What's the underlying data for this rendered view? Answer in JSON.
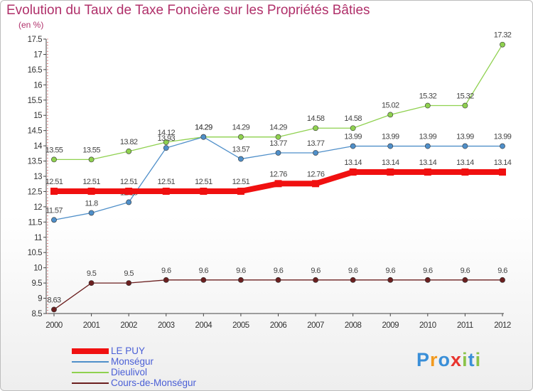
{
  "title": "Evolution du Taux de Taxe Foncière sur les Propriétés Bâties",
  "subtitle": "(en %)",
  "logo": {
    "text": [
      "P",
      "r",
      "o",
      "x",
      "i",
      "t",
      "i"
    ],
    "colors": [
      "#3a8fd8",
      "#f29a1f",
      "#3a8fd8",
      "#e8342e",
      "#8bc34a",
      "#3a8fd8",
      "#8bc34a"
    ]
  },
  "chart_data": {
    "type": "line",
    "x": [
      "2000",
      "2001",
      "2002",
      "2003",
      "2004",
      "2005",
      "2006",
      "2007",
      "2008",
      "2009",
      "2010",
      "2011",
      "2012"
    ],
    "ylim": [
      8.5,
      17.5
    ],
    "yticks": [
      "8.5",
      "9",
      "9.5",
      "10",
      "10.5",
      "11",
      "11.5",
      "12",
      "12.5",
      "13",
      "13.5",
      "14",
      "14.5",
      "15",
      "15.5",
      "16",
      "16.5",
      "17",
      "17.5"
    ],
    "grid": false,
    "legend_position": "bottom-left",
    "series": [
      {
        "name": "Dieulivol",
        "color": "#8fd14f",
        "width": 1.3,
        "values": [
          13.55,
          13.55,
          13.82,
          14.12,
          14.29,
          14.29,
          14.29,
          14.58,
          14.58,
          15.02,
          15.32,
          15.32,
          17.32
        ],
        "labels": [
          "13.55",
          "13.55",
          "13.82",
          "14.12",
          "14.29",
          "14.29",
          "14.29",
          "14.58",
          "14.58",
          "15.02",
          "15.32",
          "15.32",
          "17.32"
        ]
      },
      {
        "name": "Monségur",
        "color": "#4f8fc9",
        "width": 1.3,
        "values": [
          11.57,
          11.8,
          12.15,
          13.93,
          14.29,
          13.57,
          13.77,
          13.77,
          13.99,
          13.99,
          13.99,
          13.99,
          13.99
        ],
        "labels": [
          "11.57",
          "11.8",
          "12.15",
          "13.93",
          "14.29",
          "13.57",
          "13.77",
          "13.77",
          "13.99",
          "13.99",
          "13.99",
          "13.99",
          "13.99"
        ]
      },
      {
        "name": "Cours-de-Monségur",
        "color": "#6b1f1f",
        "width": 1.3,
        "values": [
          8.63,
          9.5,
          9.5,
          9.6,
          9.6,
          9.6,
          9.6,
          9.6,
          9.6,
          9.6,
          9.6,
          9.6,
          9.6
        ],
        "labels": [
          "8.63",
          "9.5",
          "9.5",
          "9.6",
          "9.6",
          "9.6",
          "9.6",
          "9.6",
          "9.6",
          "9.6",
          "9.6",
          "9.6",
          "9.6"
        ]
      },
      {
        "name": "LE PUY",
        "color": "#f01010",
        "width": 8,
        "values": [
          12.51,
          12.51,
          12.51,
          12.51,
          12.51,
          12.51,
          12.76,
          12.76,
          13.14,
          13.14,
          13.14,
          13.14,
          13.14
        ],
        "labels": [
          "12.51",
          "12.51",
          "12.51",
          "12.51",
          "12.51",
          "12.51",
          "12.76",
          "12.76",
          "13.14",
          "13.14",
          "13.14",
          "13.14",
          "13.14"
        ]
      }
    ],
    "legend": [
      {
        "name": "LE PUY",
        "color": "#f01010",
        "width": 8
      },
      {
        "name": "Monségur",
        "color": "#4f8fc9",
        "width": 2
      },
      {
        "name": "Dieulivol",
        "color": "#8fd14f",
        "width": 2
      },
      {
        "name": "Cours-de-Monségur",
        "color": "#6b1f1f",
        "width": 2
      }
    ]
  }
}
